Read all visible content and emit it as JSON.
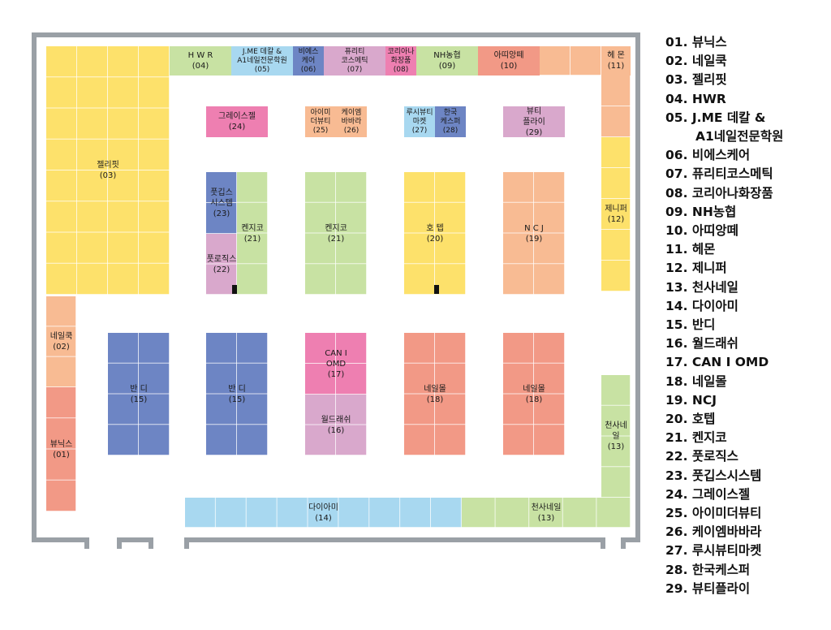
{
  "colors": {
    "yellow": "#fde16b",
    "peach": "#f8bb93",
    "salmon": "#f29986",
    "blue": "#6d85c4",
    "lightblue": "#a8d8f0",
    "green": "#c8e2a3",
    "pink": "#ee7fb1",
    "lavender": "#d9a8cc",
    "wall": "#9aa0a6"
  },
  "booths": [
    {
      "id": "jellypit",
      "label": "젤리핏\n(03)",
      "color": "yellow"
    },
    {
      "id": "hwr",
      "label": "H W R\n(04)",
      "color": "green"
    },
    {
      "id": "jme",
      "label": "J.ME 데칼 &\nA1네일전문학원\n(05)",
      "color": "lightblue"
    },
    {
      "id": "bscare",
      "label": "비에스\n케어\n(06)",
      "color": "blue"
    },
    {
      "id": "purity",
      "label": "퓨리티\n코스메틱\n(07)",
      "color": "lavender"
    },
    {
      "id": "korea",
      "label": "코리아나\n화장품\n(08)",
      "color": "pink"
    },
    {
      "id": "nh",
      "label": "NH농협\n(09)",
      "color": "green"
    },
    {
      "id": "apiang",
      "label": "아띠앙떼\n(10)",
      "color": "salmon"
    },
    {
      "id": "top-peach",
      "label": "",
      "color": "peach"
    },
    {
      "id": "hemon",
      "label": "헤 몬\n(11)",
      "color": "peach"
    },
    {
      "id": "peach-right",
      "label": "",
      "color": "peach"
    },
    {
      "id": "jennifer",
      "label": "제니퍼\n(12)",
      "color": "yellow"
    },
    {
      "id": "nailcook",
      "label": "네일쿡\n(02)",
      "color": "peach"
    },
    {
      "id": "viewnics",
      "label": "뷰닉스\n(01)",
      "color": "salmon"
    },
    {
      "id": "grace",
      "label": "그레이스젤\n(24)",
      "color": "pink"
    },
    {
      "id": "aimi",
      "label": "아이미\n더뷰티\n(25)",
      "color": "peach"
    },
    {
      "id": "kmbb",
      "label": "케이엠\n바바라\n(26)",
      "color": "peach"
    },
    {
      "id": "lucy",
      "label": "루시뷰티\n마켓\n(27)",
      "color": "lightblue"
    },
    {
      "id": "kcaspa",
      "label": "한국\n케스퍼\n(28)",
      "color": "blue"
    },
    {
      "id": "beautyflier",
      "label": "뷰티\n플라이\n(29)",
      "color": "lavender"
    },
    {
      "id": "pgib",
      "label": "풋깁스\n시스템\n(23)",
      "color": "blue"
    },
    {
      "id": "pforox",
      "label": "풋로직스\n(22)",
      "color": "lavender"
    },
    {
      "id": "kenjiko-a",
      "label": "켄지코\n(21)",
      "color": "green"
    },
    {
      "id": "kenjiko-b",
      "label": "켄지코\n(21)",
      "color": "green"
    },
    {
      "id": "hotep",
      "label": "호 텝\n(20)",
      "color": "yellow"
    },
    {
      "id": "ncj",
      "label": "N C J\n(19)",
      "color": "peach"
    },
    {
      "id": "bandi-a",
      "label": "반 디\n(15)",
      "color": "blue"
    },
    {
      "id": "bandi-b",
      "label": "반 디\n(15)",
      "color": "blue"
    },
    {
      "id": "canomd",
      "label": "CAN I\nOMD\n(17)",
      "color": "pink"
    },
    {
      "id": "worldrash",
      "label": "월드래쉬\n(16)",
      "color": "lavender"
    },
    {
      "id": "nailmall-a",
      "label": "네일몰\n(18)",
      "color": "salmon"
    },
    {
      "id": "nailmall-b",
      "label": "네일몰\n(18)",
      "color": "salmon"
    },
    {
      "id": "chunsa-v",
      "label": "천사네일\n(13)",
      "color": "green"
    },
    {
      "id": "diami",
      "label": "다이아미\n(14)",
      "color": "lightblue"
    },
    {
      "id": "chunsa-h",
      "label": "천사네일\n(13)",
      "color": "green"
    }
  ],
  "legend": [
    {
      "text": "01. 뷰닉스"
    },
    {
      "text": "02. 네일쿡"
    },
    {
      "text": "03. 젤리핏"
    },
    {
      "text": "04. HWR"
    },
    {
      "text": "05. J.ME 데칼 &"
    },
    {
      "text": "A1네일전문학원",
      "indent": true
    },
    {
      "text": "06. 비에스케어"
    },
    {
      "text": "07. 퓨리티코스메틱"
    },
    {
      "text": "08. 코리아나화장품"
    },
    {
      "text": "09. NH농협"
    },
    {
      "text": "10. 아띠앙떼"
    },
    {
      "text": "11. 헤몬"
    },
    {
      "text": "12. 제니퍼"
    },
    {
      "text": "13. 천사네일"
    },
    {
      "text": "14. 다이아미"
    },
    {
      "text": "15. 반디"
    },
    {
      "text": "16. 월드래쉬"
    },
    {
      "text": "17. CAN I OMD"
    },
    {
      "text": "18. 네일몰"
    },
    {
      "text": "19. NCJ"
    },
    {
      "text": "20. 호텝"
    },
    {
      "text": "21. 켄지코"
    },
    {
      "text": "22. 풋로직스"
    },
    {
      "text": "23. 풋깁스시스템"
    },
    {
      "text": "24. 그레이스젤"
    },
    {
      "text": "25. 아이미더뷰티"
    },
    {
      "text": "26. 케이엠바바라"
    },
    {
      "text": "27. 루시뷰티마켓"
    },
    {
      "text": "28. 한국케스퍼"
    },
    {
      "text": "29. 뷰티플라이"
    }
  ]
}
